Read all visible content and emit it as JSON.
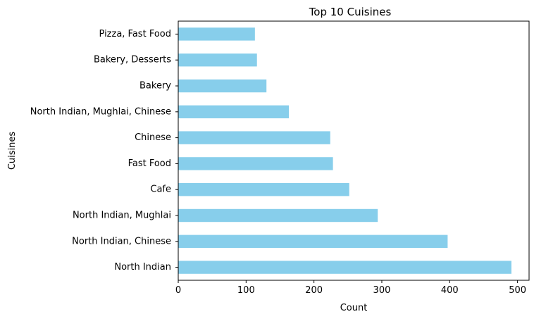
{
  "chart_data": {
    "type": "bar",
    "orientation": "horizontal",
    "title": "Top 10 Cuisines",
    "xlabel": "Count",
    "ylabel": "Cuisines",
    "categories": [
      "North Indian",
      "North Indian, Chinese",
      "North Indian, Mughlai",
      "Cafe",
      "Fast Food",
      "Chinese",
      "North Indian, Mughlai, Chinese",
      "Bakery",
      "Bakery, Desserts",
      "Pizza, Fast Food"
    ],
    "values": [
      491,
      397,
      294,
      252,
      228,
      224,
      163,
      130,
      116,
      113
    ],
    "xlim": [
      0,
      517
    ],
    "xticks": [
      "0",
      "100",
      "200",
      "300",
      "400",
      "500"
    ],
    "bar_color": "#87ceeb",
    "grid": false,
    "legend": "none"
  }
}
